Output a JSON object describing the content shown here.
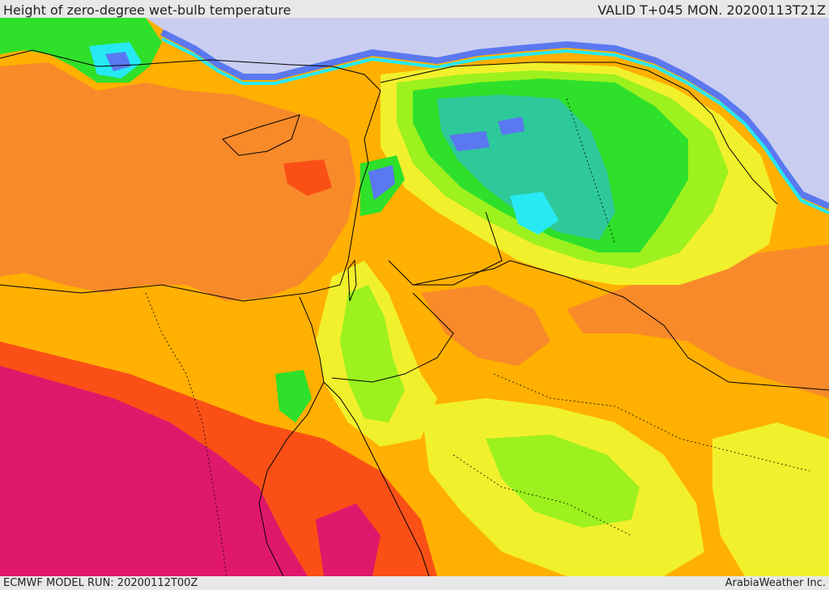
{
  "header": {
    "title": "Height of zero-degree wet-bulb temperature",
    "valid": "VALID T+045 MON. 20200113T21Z"
  },
  "footer": {
    "model_run": "ECMWF MODEL RUN: 20200112T00Z",
    "credit": "ArabiaWeather Inc."
  },
  "palette": {
    "magenta": "#e0186b",
    "red_orange": "#fa5016",
    "orange": "#f98a2a",
    "amber": "#ffb000",
    "yellow": "#f1f02c",
    "lime": "#9cf11e",
    "green": "#2ee02a",
    "teal": "#2dc99a",
    "cyan": "#26e9f4",
    "blue": "#5a78f0",
    "lavender": "#c9cdf0",
    "border_line": "#000000"
  }
}
